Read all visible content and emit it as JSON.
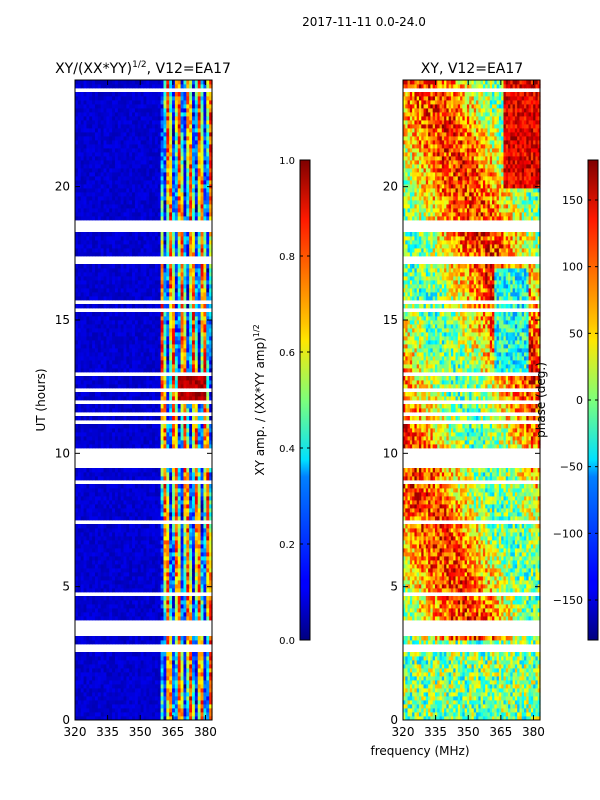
{
  "figure_title": "2017-11-11 0.0-24.0",
  "shared_xlabel": "frequency (MHz)",
  "chart_data": [
    {
      "type": "heatmap",
      "title_main": "XY/(XX*YY)",
      "title_exp": "1/2",
      "title_tail": ", V12=EA17",
      "xlabel": "",
      "ylabel": "UT (hours)",
      "xlim": [
        320,
        383
      ],
      "ylim": [
        0,
        24
      ],
      "xticks": [
        320,
        335,
        350,
        365,
        380
      ],
      "yticks": [
        0,
        5,
        10,
        15,
        20
      ],
      "colorbar": {
        "label_main": "XY amp. / (XX*YY amp)",
        "label_exp": "1/2",
        "range": [
          0.0,
          1.0
        ],
        "ticks": [
          "0.0",
          "0.2",
          "0.4",
          "0.6",
          "0.8",
          "1.0"
        ],
        "tick_values": [
          0.0,
          0.2,
          0.4,
          0.6,
          0.8,
          1.0
        ],
        "colormap": "jet"
      },
      "flagged_ut_ranges": [
        [
          3.1,
          3.6
        ],
        [
          2.6,
          2.9
        ]
      ],
      "active_freq_ranges": [
        [
          360,
          383
        ]
      ]
    },
    {
      "type": "heatmap",
      "title_main": "XY, V12=EA17",
      "title_exp": "",
      "title_tail": "",
      "xlabel": "frequency (MHz)",
      "ylabel": "",
      "xlim": [
        320,
        383
      ],
      "ylim": [
        0,
        24
      ],
      "xticks": [
        320,
        335,
        350,
        365,
        380
      ],
      "yticks": [
        0,
        5,
        10,
        15,
        20
      ],
      "colorbar": {
        "label_main": "phase (deg.)",
        "label_exp": "",
        "range": [
          -180,
          180
        ],
        "ticks": [
          "−150",
          "−100",
          "−50",
          "0",
          "50",
          "100",
          "150"
        ],
        "tick_values": [
          -150,
          -100,
          -50,
          0,
          50,
          100,
          150
        ],
        "colormap": "jet"
      },
      "flagged_ut_ranges": [
        [
          3.1,
          3.6
        ],
        [
          2.6,
          2.9
        ]
      ]
    }
  ]
}
